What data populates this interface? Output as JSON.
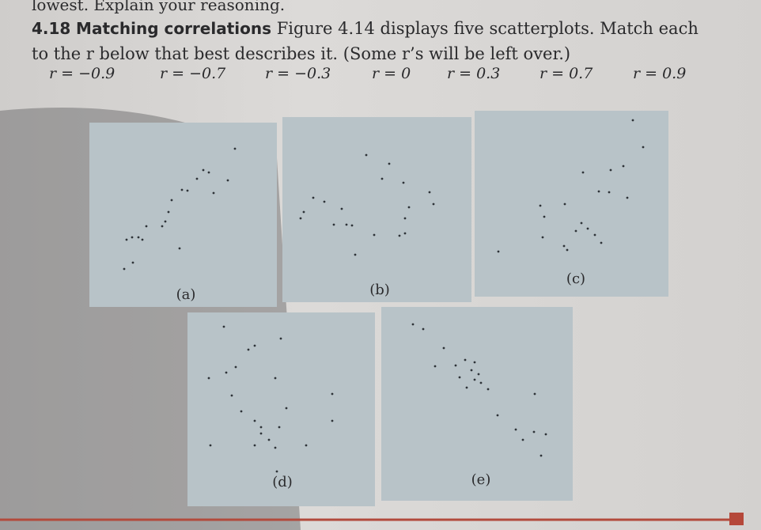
{
  "header": {
    "lead": "lowest. Explain your reasoning."
  },
  "problem": {
    "number": "4.18",
    "title": "Matching correlations",
    "text": "Figure 4.14 displays five scatterplots. Match each to the r below that best describes it. (Some r’s will be left over.)",
    "options": [
      "r = −0.9",
      "r = −0.7",
      "r = −0.3",
      "r = 0",
      "r = 0.3",
      "r = 0.7",
      "r = 0.9"
    ]
  },
  "figures": {
    "labels": [
      "(a)",
      "(b)",
      "(c)",
      "(d)",
      "(e)"
    ]
  }
}
